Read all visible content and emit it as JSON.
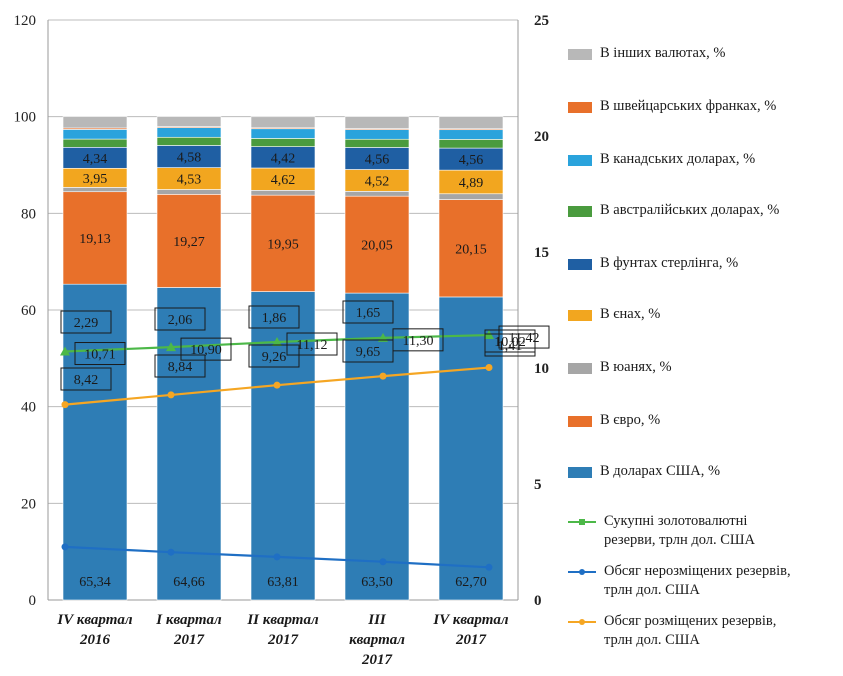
{
  "chart_data": {
    "type": "bar",
    "categories": [
      "IV квартал 2016",
      "I квартал 2017",
      "II квартал 2017",
      "III квартал 2017",
      "IV квартал 2017"
    ],
    "category_lines": [
      [
        "IV квартал",
        "2016"
      ],
      [
        "I квартал",
        "2017"
      ],
      [
        "II квартал",
        "2017"
      ],
      [
        "III",
        "квартал",
        "2017"
      ],
      [
        "IV квартал",
        "2017"
      ]
    ],
    "left_axis": {
      "ylim": [
        0,
        120
      ],
      "ticks": [
        "0",
        "20",
        "40",
        "60",
        "80",
        "100",
        "120"
      ]
    },
    "right_axis": {
      "ylim": [
        0,
        25
      ],
      "ticks": [
        "0",
        "5",
        "10",
        "15",
        "20",
        "25"
      ]
    },
    "grid": true,
    "legend_position": "right",
    "stacked_series": [
      {
        "name": "В доларах США, %",
        "color": "#2e7db5",
        "values": [
          65.34,
          64.66,
          63.81,
          63.5,
          62.7
        ],
        "labels": [
          "65,34",
          "64,66",
          "63,81",
          "63,50",
          "62,70"
        ]
      },
      {
        "name": "В євро, %",
        "color": "#e8702a",
        "values": [
          19.13,
          19.27,
          19.95,
          20.05,
          20.15
        ],
        "labels": [
          "19,13",
          "19,27",
          "19,95",
          "20,05",
          "20,15"
        ]
      },
      {
        "name": "В юанях, %",
        "color": "#a6a6a6",
        "values": [
          0.9,
          1.0,
          1.0,
          1.0,
          1.2
        ],
        "labels": []
      },
      {
        "name": "В єнах, %",
        "color": "#f2a61f",
        "values": [
          3.95,
          4.53,
          4.62,
          4.52,
          4.89
        ],
        "labels": [
          "3,95",
          "4,53",
          "4,62",
          "4,52",
          "4,89"
        ]
      },
      {
        "name": "В фунтах стерлінга, %",
        "color": "#1f5fa3",
        "values": [
          4.34,
          4.58,
          4.42,
          4.56,
          4.56
        ],
        "labels": [
          "4,34",
          "4,58",
          "4,42",
          "4,56",
          "4,56"
        ]
      },
      {
        "name": "В австралійських доларах, %",
        "color": "#4a9b3e",
        "values": [
          1.7,
          1.7,
          1.7,
          1.7,
          1.8
        ],
        "labels": []
      },
      {
        "name": "В канадських доларах, %",
        "color": "#2aa3dc",
        "values": [
          2.0,
          2.0,
          2.0,
          2.0,
          2.0
        ],
        "labels": []
      },
      {
        "name": "В швейцарських франках, %",
        "color": "#e8702a",
        "values": [
          0.3,
          0.2,
          0.2,
          0.2,
          0.2
        ],
        "labels": []
      },
      {
        "name": "В інших валютах, %",
        "color": "#b8b8b8",
        "values": [
          2.34,
          2.06,
          2.28,
          2.46,
          2.5
        ],
        "labels": []
      }
    ],
    "line_series": [
      {
        "name": "Сукупні золотовалютні\nрезерви, трлн дол. США",
        "color": "#4cb848",
        "values": [
          10.71,
          10.9,
          11.12,
          11.3,
          11.42
        ],
        "labels": [
          "10,71",
          "10,90",
          "11,12",
          "11,30",
          "11,42"
        ]
      },
      {
        "name": "Обсяг нерозміщених резервів,\nтрлн дол. США",
        "color": "#1f6fc4",
        "values": [
          2.29,
          2.06,
          1.86,
          1.65,
          1.41
        ],
        "labels": [
          "2,29",
          "2,06",
          "1,86",
          "1,65",
          "1,41"
        ]
      },
      {
        "name": "Обсяг розміщених резервів,\nтрлн дол. США",
        "color": "#f5a623",
        "values": [
          8.42,
          8.84,
          9.26,
          9.65,
          10.02
        ],
        "labels": [
          "8,42",
          "8,84",
          "9,26",
          "9,65",
          "10,02"
        ]
      }
    ]
  }
}
